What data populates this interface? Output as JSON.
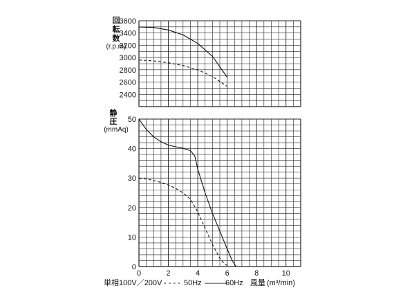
{
  "chart_data": {
    "type": "line",
    "top_panel": {
      "ylabel_chars": [
        "回",
        "転",
        "数"
      ],
      "yunit": "(r.p.m)",
      "yticks": [
        2400,
        2600,
        2800,
        3000,
        3200,
        3400,
        3600
      ],
      "ylim": [
        2200,
        3600
      ],
      "series": [
        {
          "key": "60Hz",
          "style": "solid",
          "x": [
            0,
            1,
            2,
            3,
            4,
            5,
            6
          ],
          "y": [
            3500,
            3490,
            3450,
            3370,
            3230,
            3020,
            2680
          ]
        },
        {
          "key": "50Hz",
          "style": "dashed",
          "x": [
            0,
            1,
            2,
            3,
            4,
            5,
            6
          ],
          "y": [
            2960,
            2945,
            2915,
            2870,
            2800,
            2690,
            2530
          ]
        }
      ]
    },
    "bottom_panel": {
      "ylabel_chars": [
        "静",
        "圧"
      ],
      "yunit": "(mmAq)",
      "yticks": [
        0,
        10,
        20,
        30,
        40,
        50
      ],
      "ylim": [
        0,
        50
      ],
      "series": [
        {
          "key": "60Hz",
          "style": "solid",
          "x": [
            0,
            0.5,
            1,
            1.5,
            2,
            2.5,
            3,
            3.5,
            3.8,
            4,
            4.5,
            5,
            5.5,
            6,
            6.3,
            6.6
          ],
          "y": [
            50,
            46.5,
            44,
            42.3,
            41.2,
            40.6,
            40.1,
            39.3,
            37.5,
            33,
            25,
            18,
            12,
            6,
            2.5,
            0
          ]
        },
        {
          "key": "50Hz",
          "style": "dashed",
          "x": [
            0,
            0.5,
            1,
            1.5,
            2,
            2.5,
            3,
            3.5,
            4,
            4.5,
            5,
            5.5,
            5.8,
            6.1
          ],
          "y": [
            30,
            29.7,
            29.2,
            28.5,
            27.7,
            26.5,
            25,
            22.8,
            18.5,
            13,
            7.5,
            2.8,
            1,
            0
          ]
        }
      ]
    },
    "x": {
      "ticks": [
        0,
        2,
        4,
        6,
        8,
        10
      ],
      "xlim": [
        0,
        11
      ],
      "label": "風量",
      "unit": "(m³/min)"
    },
    "legend": {
      "prefix": "単相100V／200V",
      "dash_sample": "- - - -",
      "dash_label": "50Hz",
      "solid_sample": "———",
      "solid_label": "60Hz"
    },
    "grid": true
  }
}
